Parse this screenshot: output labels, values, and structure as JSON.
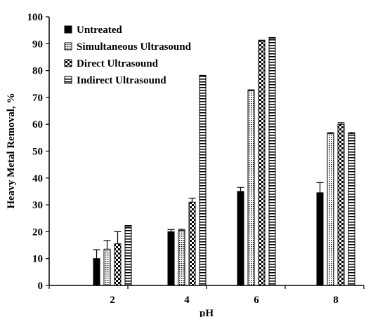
{
  "chart_data": {
    "type": "bar",
    "title": "",
    "xlabel": "pH",
    "ylabel": "Heavy Metal Removal, %",
    "categories": [
      "2",
      "4",
      "6",
      "8"
    ],
    "ylim": [
      0,
      100
    ],
    "yticks": [
      0,
      10,
      20,
      30,
      40,
      50,
      60,
      70,
      80,
      90,
      100
    ],
    "grid": false,
    "legend_position": "top-left",
    "series": [
      {
        "name": "Untreated",
        "values": [
          10,
          20,
          35,
          34.5
        ],
        "errors": [
          3.3,
          0.8,
          1.5,
          3.8
        ],
        "pattern": "solid"
      },
      {
        "name": "Simultaneous Ultrasound",
        "values": [
          13.5,
          20.5,
          72.5,
          56.5
        ],
        "errors": [
          3.2,
          0.4,
          0.3,
          0.4
        ],
        "pattern": "dots"
      },
      {
        "name": "Direct Ultrasound",
        "values": [
          15.5,
          31,
          91,
          60
        ],
        "errors": [
          4.5,
          1.5,
          0.3,
          0.6
        ],
        "pattern": "checker"
      },
      {
        "name": "Indirect Ultrasound",
        "values": [
          22,
          78,
          92,
          56.5
        ],
        "errors": [
          0.3,
          0.2,
          0.3,
          0.4
        ],
        "pattern": "hstripes"
      }
    ]
  }
}
